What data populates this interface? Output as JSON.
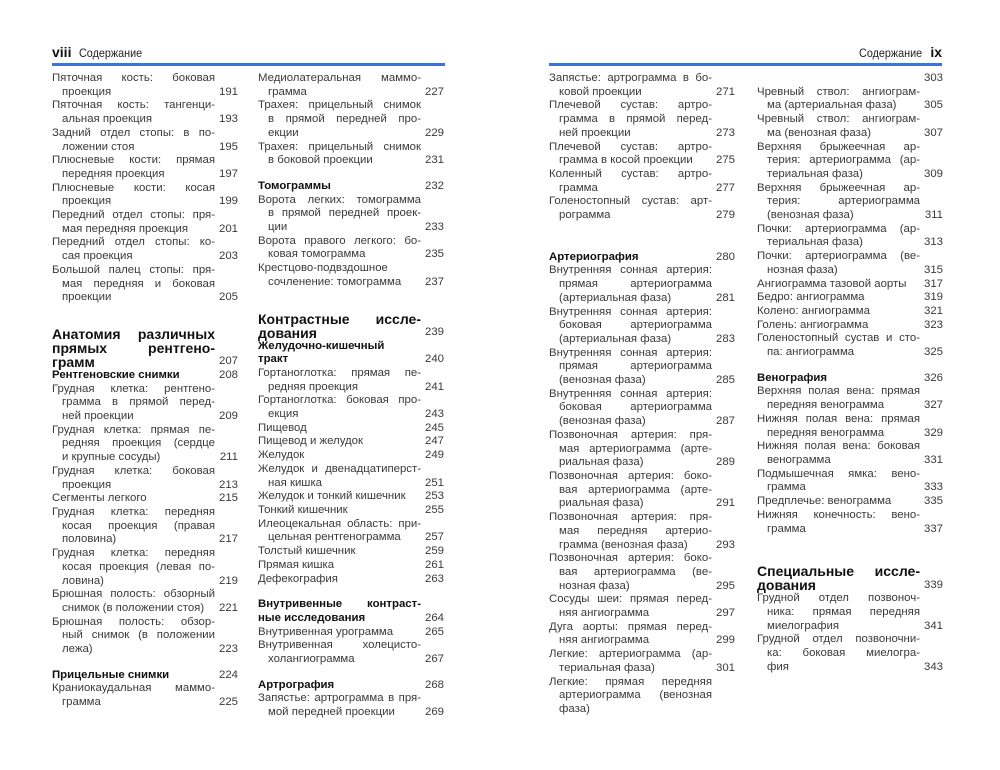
{
  "left_page": {
    "page_number": "viii",
    "running_title": "Содержание"
  },
  "right_page": {
    "page_number": "ix",
    "running_title": "Содержание"
  },
  "accent_color": "#3b74e0",
  "columns": [
    [
      {
        "type": "e",
        "lines": [
          "Пяточная кость: боковая",
          "проекция"
        ],
        "page": "191"
      },
      {
        "type": "e",
        "lines": [
          "Пяточная кость: тангенци-",
          "альная проекция"
        ],
        "page": "193"
      },
      {
        "type": "e",
        "lines": [
          "Задний отдел стопы: в по-",
          "ложении стоя"
        ],
        "page": "195"
      },
      {
        "type": "e",
        "lines": [
          "Плюсневые кости: прямая",
          "передняя проекция"
        ],
        "page": "197"
      },
      {
        "type": "e",
        "lines": [
          "Плюсневые кости: косая",
          "проекция"
        ],
        "page": "199"
      },
      {
        "type": "e",
        "lines": [
          "Передний отдел стопы: пря-",
          "мая передняя проекция"
        ],
        "page": "201"
      },
      {
        "type": "e",
        "lines": [
          "Передний отдел стопы: ко-",
          "сая проекция"
        ],
        "page": "203"
      },
      {
        "type": "e",
        "lines": [
          "Большой палец стопы: пря-",
          "мая передняя и боковая",
          "проекции"
        ],
        "page": "205"
      },
      {
        "type": "h1",
        "section_start": true,
        "lines": [
          "Анатомия различных",
          "прямых рентгено-",
          "грамм"
        ],
        "page": "207"
      },
      {
        "type": "h2",
        "lines": [
          "Рентгеновские снимки"
        ],
        "page": "208"
      },
      {
        "type": "e",
        "lines": [
          "Грудная клетка: рентгено-",
          "грамма в прямой перед-",
          "ней проекции"
        ],
        "page": "209"
      },
      {
        "type": "e",
        "lines": [
          "Грудная клетка: прямая пе-",
          "редняя проекция (сердце",
          "и крупные сосуды)"
        ],
        "page": "211"
      },
      {
        "type": "e",
        "lines": [
          "Грудная клетка: боковая",
          "проекция"
        ],
        "page": "213"
      },
      {
        "type": "e",
        "lines": [
          "Сегменты легкого"
        ],
        "page": "215"
      },
      {
        "type": "e",
        "lines": [
          "Грудная клетка: передняя",
          "косая проекция (правая",
          "половина)"
        ],
        "page": "217"
      },
      {
        "type": "e",
        "lines": [
          "Грудная клетка: передняя",
          "косая проекция (левая по-",
          "ловина)"
        ],
        "page": "219"
      },
      {
        "type": "e",
        "lines": [
          "Брюшная полость: обзорный",
          "снимок (в положении стоя)"
        ],
        "page": "221"
      },
      {
        "type": "e",
        "lines": [
          "Брюшная полость: обзор-",
          "ный снимок (в положении",
          "лежа)"
        ],
        "page": "223"
      },
      {
        "type": "h2",
        "section_start": true,
        "lines": [
          "Прицельные снимки"
        ],
        "page": "224"
      },
      {
        "type": "e",
        "lines": [
          "Краниокаудальная маммо-",
          "грамма"
        ],
        "page": "225"
      }
    ],
    [
      {
        "type": "e",
        "lines": [
          "Медиолатеральная маммо-",
          "грамма"
        ],
        "page": "227"
      },
      {
        "type": "e",
        "lines": [
          "Трахея: прицельный снимок",
          "в прямой передней про-",
          "екции"
        ],
        "page": "229"
      },
      {
        "type": "e",
        "lines": [
          "Трахея: прицельный снимок",
          "в боковой проекции"
        ],
        "page": "231"
      },
      {
        "type": "h2",
        "section_start": true,
        "lines": [
          "Томограммы"
        ],
        "page": "232"
      },
      {
        "type": "e",
        "lines": [
          "Ворота легких: томограмма",
          "в прямой передней проек-",
          "ции"
        ],
        "page": "233"
      },
      {
        "type": "e",
        "lines": [
          "Ворота правого легкого: бо-",
          "ковая томограмма"
        ],
        "page": "235"
      },
      {
        "type": "e",
        "lines": [
          "Крестцово-подвздошное",
          "сочленение: томограмма"
        ],
        "page": "237"
      },
      {
        "type": "h1",
        "section_start": true,
        "lines": [
          "Контрастные иссле-",
          "дования"
        ],
        "page": "239"
      },
      {
        "type": "h2",
        "lines": [
          "Желудочно-кишечный",
          "тракт"
        ],
        "page": "240"
      },
      {
        "type": "e",
        "lines": [
          "Гортаноглотка: прямая пе-",
          "редняя проекция"
        ],
        "page": "241"
      },
      {
        "type": "e",
        "lines": [
          "Гортаноглотка: боковая про-",
          "екция"
        ],
        "page": "243"
      },
      {
        "type": "e",
        "lines": [
          "Пищевод"
        ],
        "page": "245"
      },
      {
        "type": "e",
        "lines": [
          "Пищевод и желудок"
        ],
        "page": "247"
      },
      {
        "type": "e",
        "lines": [
          "Желудок"
        ],
        "page": "249"
      },
      {
        "type": "e",
        "lines": [
          "Желудок и двенадцатиперст-",
          "ная кишка"
        ],
        "page": "251"
      },
      {
        "type": "e",
        "lines": [
          "Желудок и тонкий кишечник"
        ],
        "page": "253"
      },
      {
        "type": "e",
        "lines": [
          "Тонкий кишечник"
        ],
        "page": "255"
      },
      {
        "type": "e",
        "lines": [
          "Илеоцекальная область: при-",
          "цельная рентгенограмма"
        ],
        "page": "257"
      },
      {
        "type": "e",
        "lines": [
          "Толстый кишечник"
        ],
        "page": "259"
      },
      {
        "type": "e",
        "lines": [
          "Прямая кишка"
        ],
        "page": "261"
      },
      {
        "type": "e",
        "lines": [
          "Дефекография"
        ],
        "page": "263"
      },
      {
        "type": "h2",
        "section_start": true,
        "lines": [
          "Внутривенные контраст-",
          "ные исследования"
        ],
        "page": "264"
      },
      {
        "type": "e",
        "lines": [
          "Внутривенная урограмма"
        ],
        "page": "265"
      },
      {
        "type": "e",
        "lines": [
          "Внутривенная холецисто-",
          "холангиограмма"
        ],
        "page": "267"
      },
      {
        "type": "h2",
        "section_start": true,
        "lines": [
          "Артрография"
        ],
        "page": "268"
      },
      {
        "type": "e",
        "lines": [
          "Запястье: артрограмма в пря-",
          "мой передней проекции"
        ],
        "page": "269"
      }
    ],
    [
      {
        "type": "e",
        "lines": [
          "Запястье: артрограмма в бо-",
          "ковой проекции"
        ],
        "page": "271"
      },
      {
        "type": "e",
        "lines": [
          "Плечевой сустав: артро-",
          "грамма в прямой перед-",
          "ней проекции"
        ],
        "page": "273"
      },
      {
        "type": "e",
        "lines": [
          "Плечевой сустав: артро-",
          "грамма в косой проекции"
        ],
        "page": "275"
      },
      {
        "type": "e",
        "lines": [
          "Коленный сустав: артро-",
          "грамма"
        ],
        "page": "277"
      },
      {
        "type": "e",
        "lines": [
          "Голеностопный сустав: арт-",
          "рограмма"
        ],
        "page": "279"
      },
      {
        "type": "h2",
        "section_start": true,
        "major_break": true,
        "lines": [
          "Артериография"
        ],
        "page": "280"
      },
      {
        "type": "e",
        "lines": [
          "Внутренняя сонная артерия:",
          "прямая артериограмма",
          "(артериальная фаза)"
        ],
        "page": "281"
      },
      {
        "type": "e",
        "lines": [
          "Внутренняя сонная артерия:",
          "боковая артериограмма",
          "(артериальная фаза)"
        ],
        "page": "283"
      },
      {
        "type": "e",
        "lines": [
          "Внутренняя сонная артерия:",
          "прямая артериограмма",
          "(венозная фаза)"
        ],
        "page": "285"
      },
      {
        "type": "e",
        "lines": [
          "Внутренняя сонная артерия:",
          "боковая артериограмма",
          "(венозная фаза)"
        ],
        "page": "287"
      },
      {
        "type": "e",
        "lines": [
          "Позвоночная артерия: пря-",
          "мая артериограмма (арте-",
          "риальная фаза)"
        ],
        "page": "289"
      },
      {
        "type": "e",
        "lines": [
          "Позвоночная артерия: боко-",
          "вая артериограмма (арте-",
          "риальная фаза)"
        ],
        "page": "291"
      },
      {
        "type": "e",
        "lines": [
          "Позвоночная артерия: пря-",
          "мая передняя артерио-",
          "грамма (венозная фаза)"
        ],
        "page": "293"
      },
      {
        "type": "e",
        "lines": [
          "Позвоночная артерия: боко-",
          "вая артериограмма (ве-",
          "нозная фаза)"
        ],
        "page": "295"
      },
      {
        "type": "e",
        "lines": [
          "Сосуды шеи: прямая перед-",
          "няя ангиограмма"
        ],
        "page": "297"
      },
      {
        "type": "e",
        "lines": [
          "Дуга аорты: прямая перед-",
          "няя ангиограмма"
        ],
        "page": "299"
      },
      {
        "type": "e",
        "lines": [
          "Легкие: артериограмма (ар-",
          "териальная фаза)"
        ],
        "page": "301"
      },
      {
        "type": "e",
        "lines": [
          "Легкие: прямая передняя",
          "артериограмма (венозная",
          "фаза)"
        ],
        "page": ""
      }
    ],
    [
      {
        "type": "e",
        "lines": [
          ""
        ],
        "page": "303"
      },
      {
        "type": "e",
        "lines": [
          "Чревный ствол: ангиограм-",
          "ма (артериальная фаза)"
        ],
        "page": "305"
      },
      {
        "type": "e",
        "lines": [
          "Чревный ствол: ангиограм-",
          "ма (венозная фаза)"
        ],
        "page": "307"
      },
      {
        "type": "e",
        "lines": [
          "Верхняя брыжеечная ар-",
          "терия: артериограмма (ар-",
          "териальная фаза)"
        ],
        "page": "309"
      },
      {
        "type": "e",
        "lines": [
          "Верхняя брыжеечная ар-",
          "терия: артериограмма",
          "(венозная фаза)"
        ],
        "page": "311"
      },
      {
        "type": "e",
        "lines": [
          "Почки: артериограмма (ар-",
          "териальная фаза)"
        ],
        "page": "313"
      },
      {
        "type": "e",
        "lines": [
          "Почки: артериограмма (ве-",
          "нозная фаза)"
        ],
        "page": "315"
      },
      {
        "type": "e",
        "lines": [
          "Ангиограмма тазовой аорты"
        ],
        "page": "317"
      },
      {
        "type": "e",
        "lines": [
          "Бедро: ангиограмма"
        ],
        "page": "319"
      },
      {
        "type": "e",
        "lines": [
          "Колено: ангиограмма"
        ],
        "page": "321"
      },
      {
        "type": "e",
        "lines": [
          "Голень: ангиограмма"
        ],
        "page": "323"
      },
      {
        "type": "e",
        "lines": [
          "Голеностопный сустав и сто-",
          "па: ангиограмма"
        ],
        "page": "325"
      },
      {
        "type": "h2",
        "section_start": true,
        "lines": [
          "Венография"
        ],
        "page": "326"
      },
      {
        "type": "e",
        "lines": [
          "Верхняя полая вена: прямая",
          "передняя венограмма"
        ],
        "page": "327"
      },
      {
        "type": "e",
        "lines": [
          "Нижняя полая вена: прямая",
          "передняя венограмма"
        ],
        "page": "329"
      },
      {
        "type": "e",
        "lines": [
          "Нижняя полая вена: боковая",
          "венограмма"
        ],
        "page": "331"
      },
      {
        "type": "e",
        "lines": [
          "Подмышечная ямка: вено-",
          "грамма"
        ],
        "page": "333"
      },
      {
        "type": "e",
        "lines": [
          "Предплечье: венограмма"
        ],
        "page": "335"
      },
      {
        "type": "e",
        "lines": [
          "Нижняя конечность: вено-",
          "грамма"
        ],
        "page": "337"
      },
      {
        "type": "h1",
        "section_start": true,
        "major_break": true,
        "lines": [
          "Специальные иссле-",
          "дования"
        ],
        "page": "339"
      },
      {
        "type": "e",
        "lines": [
          "Грудной отдел позвоноч-",
          "ника: прямая передняя",
          "миелография"
        ],
        "page": "341"
      },
      {
        "type": "e",
        "lines": [
          "Грудной отдел позвоночни-",
          "ка: боковая миелогра-",
          "фия"
        ],
        "page": "343"
      }
    ]
  ]
}
